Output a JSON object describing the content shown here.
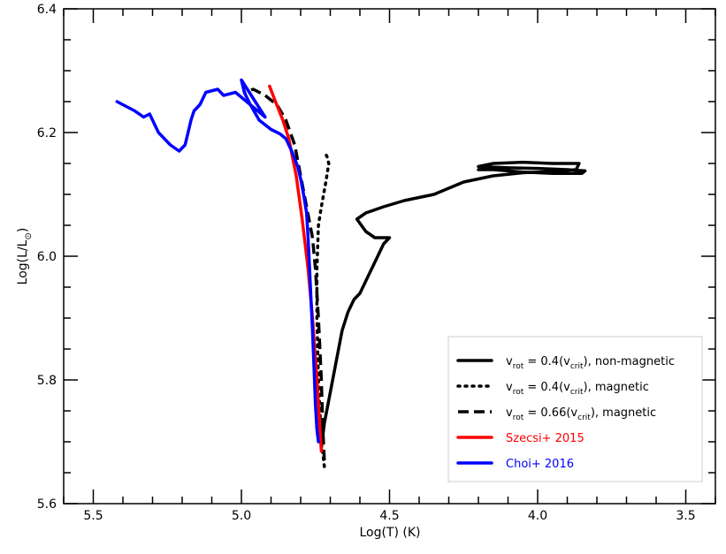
{
  "chart_data": {
    "type": "line",
    "title": "",
    "xlabel": "Log(T) (K)",
    "ylabel": "Log(L/L⊙)",
    "xlim": [
      5.6,
      3.4
    ],
    "ylim": [
      5.6,
      6.4
    ],
    "x_inverted": true,
    "xticks": [
      "5.5",
      "5.0",
      "4.5",
      "4.0",
      "3.5"
    ],
    "xtick_values": [
      5.5,
      5.0,
      4.5,
      4.0,
      3.5
    ],
    "yticks": [
      "5.6",
      "5.8",
      "6.0",
      "6.2",
      "6.4"
    ],
    "ytick_values": [
      5.6,
      5.8,
      6.0,
      6.2,
      6.4
    ],
    "legend_position": "lower-right",
    "series": [
      {
        "key": "rot04_nonmag",
        "color": "#000000",
        "style": "solid",
        "points": [
          [
            4.73,
            5.69
          ],
          [
            4.72,
            5.73
          ],
          [
            4.7,
            5.78
          ],
          [
            4.68,
            5.83
          ],
          [
            4.66,
            5.88
          ],
          [
            4.64,
            5.91
          ],
          [
            4.62,
            5.93
          ],
          [
            4.6,
            5.94
          ],
          [
            4.58,
            5.96
          ],
          [
            4.55,
            5.99
          ],
          [
            4.52,
            6.02
          ],
          [
            4.5,
            6.03
          ],
          [
            4.52,
            6.03
          ],
          [
            4.55,
            6.03
          ],
          [
            4.58,
            6.04
          ],
          [
            4.61,
            6.06
          ],
          [
            4.58,
            6.07
          ],
          [
            4.52,
            6.08
          ],
          [
            4.45,
            6.09
          ],
          [
            4.35,
            6.1
          ],
          [
            4.25,
            6.12
          ],
          [
            4.15,
            6.13
          ],
          [
            4.05,
            6.135
          ],
          [
            3.95,
            6.137
          ],
          [
            3.87,
            6.14
          ],
          [
            3.86,
            6.15
          ],
          [
            3.95,
            6.15
          ],
          [
            4.05,
            6.152
          ],
          [
            4.15,
            6.15
          ],
          [
            4.2,
            6.145
          ],
          [
            4.1,
            6.143
          ],
          [
            4.0,
            6.142
          ],
          [
            3.9,
            6.14
          ],
          [
            3.84,
            6.138
          ],
          [
            3.85,
            6.134
          ],
          [
            3.95,
            6.134
          ],
          [
            4.05,
            6.136
          ],
          [
            4.15,
            6.14
          ],
          [
            4.2,
            6.14
          ]
        ]
      },
      {
        "key": "rot04_mag",
        "color": "#000000",
        "style": "dotted",
        "points": [
          [
            4.72,
            5.66
          ],
          [
            4.73,
            5.7
          ],
          [
            4.74,
            5.8
          ],
          [
            4.745,
            5.9
          ],
          [
            4.745,
            5.98
          ],
          [
            4.74,
            6.05
          ],
          [
            4.73,
            6.08
          ],
          [
            4.715,
            6.12
          ],
          [
            4.705,
            6.15
          ],
          [
            4.71,
            6.16
          ],
          [
            4.72,
            6.17
          ]
        ]
      },
      {
        "key": "rot066_mag",
        "color": "#000000",
        "style": "dashed",
        "points": [
          [
            4.72,
            5.67
          ],
          [
            4.725,
            5.72
          ],
          [
            4.73,
            5.8
          ],
          [
            4.74,
            5.9
          ],
          [
            4.75,
            5.98
          ],
          [
            4.76,
            6.03
          ],
          [
            4.78,
            6.08
          ],
          [
            4.8,
            6.13
          ],
          [
            4.82,
            6.18
          ],
          [
            4.85,
            6.22
          ],
          [
            4.88,
            6.245
          ],
          [
            4.92,
            6.26
          ],
          [
            4.96,
            6.27
          ],
          [
            4.99,
            6.265
          ]
        ]
      },
      {
        "key": "szecsi",
        "color": "#ff0000",
        "style": "solid",
        "points": [
          [
            4.73,
            5.685
          ],
          [
            4.735,
            5.72
          ],
          [
            4.745,
            5.8
          ],
          [
            4.76,
            5.9
          ],
          [
            4.775,
            5.98
          ],
          [
            4.795,
            6.06
          ],
          [
            4.815,
            6.13
          ],
          [
            4.84,
            6.19
          ],
          [
            4.86,
            6.22
          ],
          [
            4.885,
            6.25
          ],
          [
            4.905,
            6.275
          ]
        ]
      },
      {
        "key": "choi",
        "color": "#0000ff",
        "style": "solid",
        "points": [
          [
            4.74,
            5.7
          ],
          [
            4.745,
            5.72
          ],
          [
            4.75,
            5.76
          ],
          [
            4.755,
            5.82
          ],
          [
            4.76,
            5.88
          ],
          [
            4.765,
            5.93
          ],
          [
            4.77,
            5.98
          ],
          [
            4.775,
            6.03
          ],
          [
            4.78,
            6.07
          ],
          [
            4.79,
            6.1
          ],
          [
            4.8,
            6.125
          ],
          [
            4.81,
            6.145
          ],
          [
            4.83,
            6.17
          ],
          [
            4.85,
            6.19
          ],
          [
            4.87,
            6.198
          ],
          [
            4.9,
            6.205
          ],
          [
            4.94,
            6.22
          ],
          [
            4.97,
            6.245
          ],
          [
            4.99,
            6.265
          ],
          [
            5.0,
            6.285
          ],
          [
            4.96,
            6.255
          ],
          [
            4.92,
            6.225
          ],
          [
            5.02,
            6.265
          ],
          [
            5.06,
            6.26
          ],
          [
            5.08,
            6.27
          ],
          [
            5.12,
            6.265
          ],
          [
            5.14,
            6.245
          ],
          [
            5.16,
            6.235
          ],
          [
            5.17,
            6.22
          ],
          [
            5.18,
            6.2
          ],
          [
            5.19,
            6.18
          ],
          [
            5.21,
            6.17
          ],
          [
            5.24,
            6.18
          ],
          [
            5.28,
            6.2
          ],
          [
            5.31,
            6.23
          ],
          [
            5.33,
            6.225
          ],
          [
            5.36,
            6.235
          ],
          [
            5.42,
            6.25
          ]
        ]
      }
    ],
    "legend": [
      {
        "series": "rot04_nonmag",
        "pre": "v",
        "sub1": "rot",
        "mid": " = 0.4(v",
        "sub2": "crit",
        "post": "), non-magnetic",
        "color": "#000000",
        "style": "solid"
      },
      {
        "series": "rot04_mag",
        "pre": "v",
        "sub1": "rot",
        "mid": " = 0.4(v",
        "sub2": "crit",
        "post": "), magnetic",
        "color": "#000000",
        "style": "dotted"
      },
      {
        "series": "rot066_mag",
        "pre": "v",
        "sub1": "rot",
        "mid": " = 0.66(v",
        "sub2": "crit",
        "post": "), magnetic",
        "color": "#000000",
        "style": "dashed"
      },
      {
        "series": "szecsi",
        "text": "Szecsi+ 2015",
        "color": "#ff0000",
        "style": "solid"
      },
      {
        "series": "choi",
        "text": "Choi+ 2016",
        "color": "#0000ff",
        "style": "solid"
      }
    ]
  }
}
